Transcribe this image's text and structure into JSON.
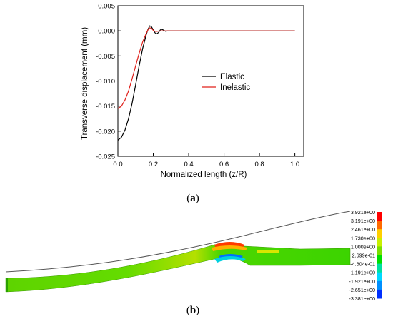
{
  "chart_data": [
    {
      "type": "line",
      "title": "",
      "xlabel": "Normalized length (z/R)",
      "ylabel": "Transverse displacement (mm)",
      "xlim": [
        0.0,
        1.05
      ],
      "ylim": [
        -0.025,
        0.005
      ],
      "xticks": [
        "0.0",
        "0.2",
        "0.4",
        "0.6",
        "0.8",
        "1.0"
      ],
      "yticks": [
        "0.005",
        "0.000",
        "-0.005",
        "-0.010",
        "-0.015",
        "-0.020",
        "-0.025"
      ],
      "grid": false,
      "legend": "center-right",
      "series": [
        {
          "name": "Elastic",
          "color": "#000000",
          "x": [
            0.0,
            0.02,
            0.04,
            0.06,
            0.08,
            0.1,
            0.12,
            0.14,
            0.16,
            0.17,
            0.18,
            0.19,
            0.2,
            0.21,
            0.22,
            0.23,
            0.24,
            0.25,
            0.26,
            0.27,
            0.28,
            0.3,
            0.5,
            0.8,
            1.0
          ],
          "y": [
            -0.0218,
            -0.0212,
            -0.0198,
            -0.0175,
            -0.0145,
            -0.0108,
            -0.007,
            -0.0035,
            -0.0008,
            0.0003,
            0.001,
            0.0008,
            0.0002,
            -0.0004,
            -0.0006,
            -0.0003,
            0.0002,
            0.0003,
            0.0001,
            -0.0001,
            0.0,
            0.0,
            0.0,
            0.0,
            0.0
          ]
        },
        {
          "name": "Inelastic",
          "color": "#e0201b",
          "x": [
            0.0,
            0.02,
            0.04,
            0.06,
            0.08,
            0.1,
            0.12,
            0.14,
            0.16,
            0.17,
            0.18,
            0.19,
            0.2,
            0.21,
            0.22,
            0.24,
            0.26,
            0.3,
            0.5,
            0.8,
            1.0
          ],
          "y": [
            -0.0155,
            -0.015,
            -0.0138,
            -0.012,
            -0.0096,
            -0.007,
            -0.0045,
            -0.0022,
            -0.0005,
            0.0002,
            0.0006,
            0.0005,
            0.0001,
            -0.0001,
            -0.0001,
            0.0,
            0.0,
            0.0,
            0.0,
            0.0,
            0.0
          ]
        }
      ]
    },
    {
      "type": "heatmap",
      "title": "",
      "legend": "right",
      "colorbar_labels": [
        "3.921e+00",
        "3.191e+00",
        "2.461e+00",
        "1.730e+00",
        "1.000e+00",
        "2.699e-01",
        "-4.604e-01",
        "-1.191e+00",
        "-1.921e+00",
        "-2.651e+00",
        "-3.381e+00"
      ],
      "colorbar_colors": [
        "#ff0000",
        "#ff6a00",
        "#ffd000",
        "#c8f000",
        "#7ae000",
        "#00e000",
        "#00e0a0",
        "#00d8ff",
        "#0090ff",
        "#0030ff",
        "#0000c8"
      ]
    }
  ],
  "captions": {
    "a": "a",
    "b": "b"
  }
}
